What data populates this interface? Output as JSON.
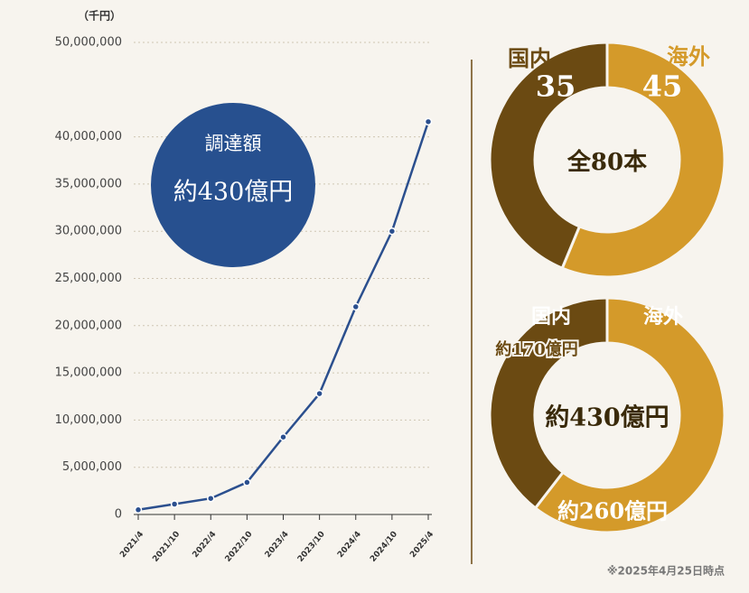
{
  "chart_data": [
    {
      "type": "line",
      "y_label": "（千円）",
      "categories": [
        "2021/4",
        "2021/10",
        "2022/4",
        "2022/10",
        "2023/4",
        "2023/10",
        "2024/4",
        "2024/10",
        "2025/4"
      ],
      "values": [
        500000,
        1100000,
        1700000,
        3400000,
        8200000,
        12800000,
        22000000,
        30000000,
        41600000
      ],
      "color": "#2b4f8e",
      "ylim": [
        0,
        50000000
      ],
      "yticks": [
        0,
        {
          "value": 5000000,
          "label": "5,000,000"
        },
        {
          "value": 10000000,
          "label": "10,000,000"
        },
        {
          "value": 15000000,
          "label": "15,000,000"
        },
        {
          "value": 20000000,
          "label": "20,000,000"
        },
        {
          "value": 25000000,
          "label": "25,000,000"
        },
        {
          "value": 30000000,
          "label": "30,000,000"
        },
        {
          "value": 35000000,
          "label": "35,000,000"
        },
        {
          "value": 40000000,
          "label": "40,000,000"
        },
        {
          "value": 50000000,
          "label": "50,000,000"
        }
      ],
      "grid": true,
      "annotations": [
        "調達額",
        "約430億円"
      ],
      "badge_color": "#27508f"
    },
    {
      "type": "pie",
      "categories": [
        "国内",
        "海外"
      ],
      "values": [
        35,
        45
      ],
      "colors": [
        "#6b4a12",
        "#d49a2a"
      ],
      "center_label": "全80本"
    },
    {
      "type": "pie",
      "categories": [
        "国内",
        "海外"
      ],
      "values": [
        170,
        260
      ],
      "value_labels": [
        "約170億円",
        "約260億円"
      ],
      "colors": [
        "#6b4a12",
        "#d49a2a"
      ],
      "center_label": "約430億円"
    }
  ],
  "note": "※2025年4月25日時点"
}
